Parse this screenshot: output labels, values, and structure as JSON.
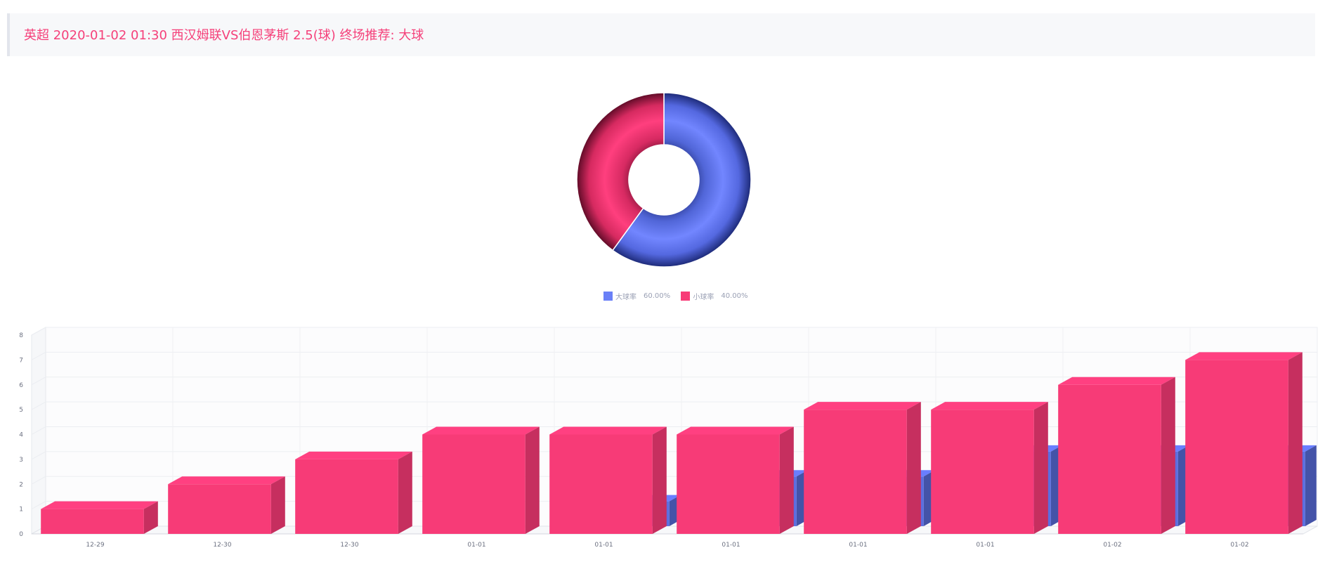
{
  "header": {
    "title": "英超 2020-01-02 01:30 西汉姆联VS伯恩茅斯 2.5(球) 终场推荐: 大球"
  },
  "colors": {
    "big": "#6a80f7",
    "small": "#f73b77"
  },
  "legend": {
    "items": [
      {
        "label": "大球率",
        "value": "60.00%",
        "color": "#6a80f7"
      },
      {
        "label": "小球率",
        "value": "40.00%",
        "color": "#f73b77"
      }
    ]
  },
  "chart_data": [
    {
      "type": "pie",
      "variant": "donut",
      "labels": [
        "大球率",
        "小球率"
      ],
      "values": [
        60,
        40
      ],
      "legend_placement": "bottom"
    },
    {
      "type": "bar",
      "variant": "3d",
      "categories": [
        "12-29",
        "12-30",
        "12-30",
        "01-01",
        "01-01",
        "01-01",
        "01-01",
        "01-01",
        "01-02",
        "01-02"
      ],
      "series": [
        {
          "color": "#f73b77",
          "values": [
            1,
            2,
            3,
            4,
            4,
            4,
            5,
            5,
            6,
            7
          ]
        },
        {
          "color": "#5b6ee0",
          "values": [
            0,
            0,
            0,
            0,
            1,
            2,
            2,
            3,
            3,
            3
          ]
        }
      ],
      "ylim": [
        0,
        8
      ],
      "yticks": [
        0,
        1,
        2,
        3,
        4,
        5,
        6,
        7,
        8
      ],
      "grid": true
    }
  ]
}
